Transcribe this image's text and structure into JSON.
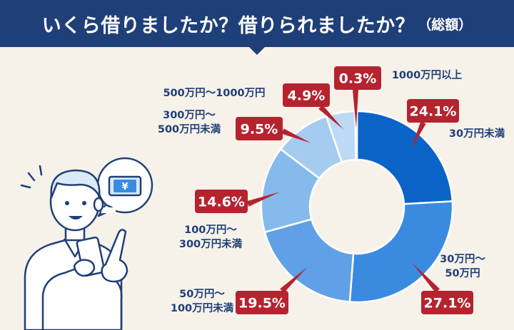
{
  "header": {
    "title": "いくら借りましたか？借りられましたか？",
    "title_suffix": "（総額）"
  },
  "chart_data": {
    "type": "donut",
    "title": "いくら借りましたか？借りられましたか？（総額）",
    "unit": "%",
    "series": [
      {
        "category": "30万円未満",
        "label_lines": [
          "30万円未満"
        ],
        "value": 24.1,
        "value_label": "24.1%",
        "color": "#0a64c8"
      },
      {
        "category": "30万円〜50万円",
        "label_lines": [
          "30万円〜",
          "50万円"
        ],
        "value": 27.1,
        "value_label": "27.1%",
        "color": "#3a8be0"
      },
      {
        "category": "50万円〜100万円未満",
        "label_lines": [
          "50万円〜",
          "100万円未満"
        ],
        "value": 19.5,
        "value_label": "19.5%",
        "color": "#5fa0e6"
      },
      {
        "category": "100万円〜300万円未満",
        "label_lines": [
          "100万円〜",
          "300万円未満"
        ],
        "value": 14.6,
        "value_label": "14.6%",
        "color": "#86b9ec"
      },
      {
        "category": "300万円〜500万円未満",
        "label_lines": [
          "300万円〜",
          "500万円未満"
        ],
        "value": 9.5,
        "value_label": "9.5%",
        "color": "#a6cbf1"
      },
      {
        "category": "500万円〜1000万円",
        "label_lines": [
          "500万円〜1000万円"
        ],
        "value": 4.9,
        "value_label": "4.9%",
        "color": "#bcd9f6"
      },
      {
        "category": "1000万円以上",
        "label_lines": [
          "1000万円以上"
        ],
        "value": 0.3,
        "value_label": "0.3%",
        "color": "#cfe3f8"
      }
    ],
    "colors": {
      "value_box": "#b5232f",
      "category_text": "#1f3f78",
      "divider": "#ffffff"
    }
  },
  "illustration": {
    "icon": "person-with-smartphone-icon",
    "bubble_icon": "yen-banknote-icon",
    "currency_symbol": "¥"
  }
}
